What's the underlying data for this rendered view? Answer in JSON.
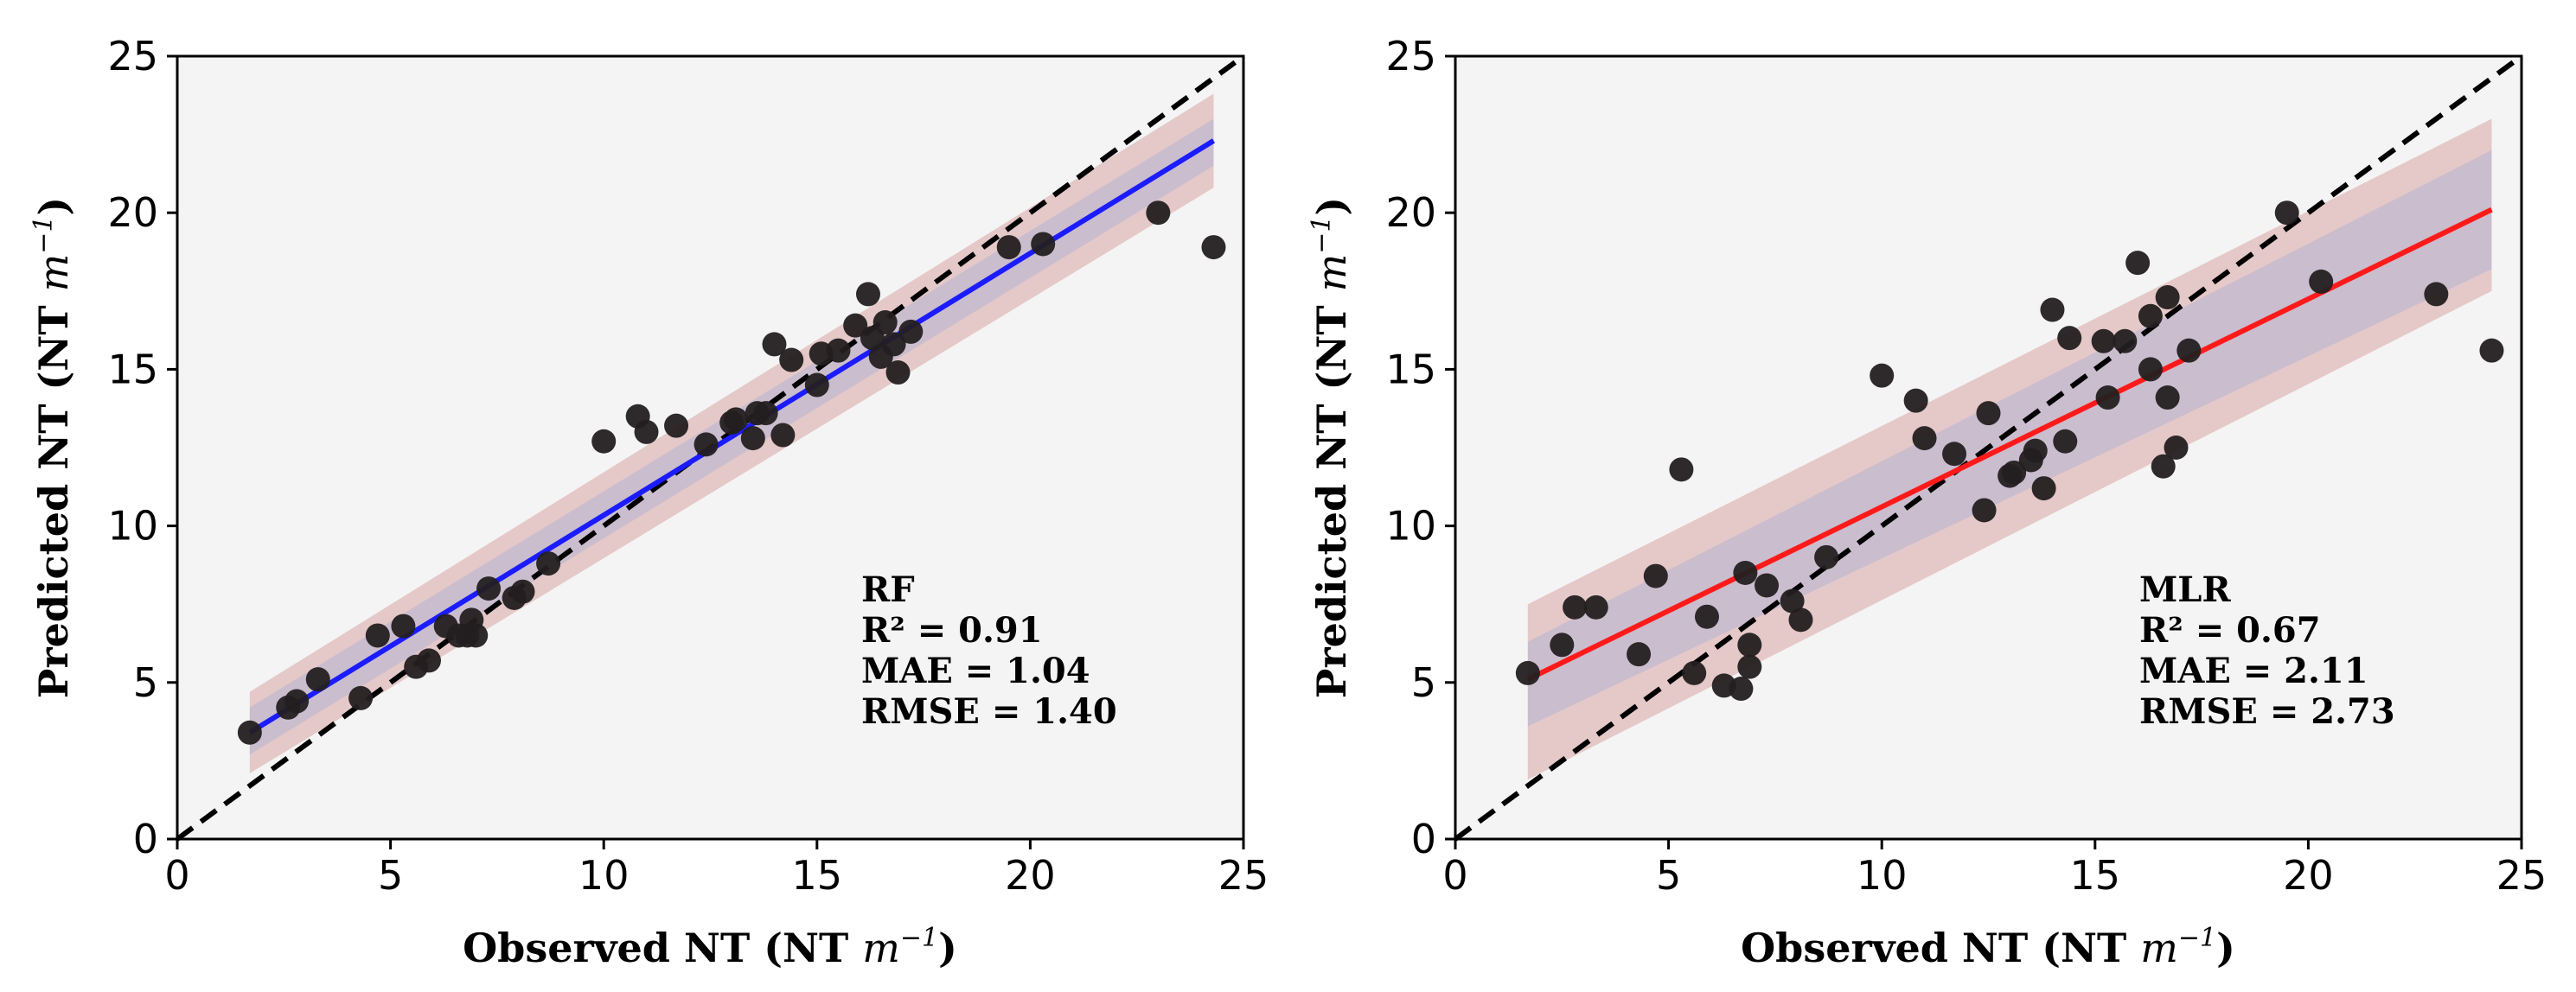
{
  "chart_data": [
    {
      "type": "scatter",
      "model": "RF",
      "xlabel": "Observed NT (NT m⁻¹)",
      "ylabel": "Predicted NT (NT m⁻¹)",
      "xlim": [
        0,
        25
      ],
      "ylim": [
        0,
        25
      ],
      "xticks": [
        0,
        5,
        10,
        15,
        20,
        25
      ],
      "yticks": [
        0,
        5,
        10,
        15,
        20,
        25
      ],
      "background": "#f4f4f4",
      "fit_color": "#1b1bff",
      "point_color": "#231f20",
      "one_to_one_line": true,
      "fit": {
        "x0": 1.7,
        "y0": 3.4,
        "x1": 24.3,
        "y1": 22.3
      },
      "bands": {
        "outer": {
          "upper_start": 4.7,
          "lower_start": 2.1,
          "upper_end": 23.8,
          "lower_end": 20.8
        },
        "inner": {
          "upper_start": 4.2,
          "lower_start": 2.7,
          "upper_end": 23.0,
          "lower_end": 21.5
        }
      },
      "annotation": {
        "label": "RF",
        "r2": "R² = 0.91",
        "mae": "MAE = 1.04",
        "rmse": "RMSE = 1.40"
      },
      "points": [
        [
          1.7,
          3.4
        ],
        [
          2.6,
          4.2
        ],
        [
          2.8,
          4.4
        ],
        [
          3.3,
          5.1
        ],
        [
          4.3,
          4.5
        ],
        [
          4.7,
          6.5
        ],
        [
          5.3,
          6.8
        ],
        [
          5.6,
          5.5
        ],
        [
          5.9,
          5.7
        ],
        [
          6.3,
          6.8
        ],
        [
          6.6,
          6.5
        ],
        [
          6.8,
          6.5
        ],
        [
          6.9,
          7.0
        ],
        [
          7.0,
          6.5
        ],
        [
          7.3,
          8.0
        ],
        [
          7.9,
          7.7
        ],
        [
          8.1,
          7.9
        ],
        [
          8.7,
          8.8
        ],
        [
          10.0,
          12.7
        ],
        [
          10.8,
          13.5
        ],
        [
          11.0,
          13.0
        ],
        [
          11.7,
          13.2
        ],
        [
          12.4,
          12.6
        ],
        [
          13.0,
          13.3
        ],
        [
          13.1,
          13.4
        ],
        [
          13.5,
          12.8
        ],
        [
          13.6,
          13.6
        ],
        [
          13.8,
          13.6
        ],
        [
          14.0,
          15.8
        ],
        [
          14.2,
          12.9
        ],
        [
          14.4,
          15.3
        ],
        [
          15.0,
          14.5
        ],
        [
          15.1,
          15.5
        ],
        [
          15.5,
          15.6
        ],
        [
          15.9,
          16.4
        ],
        [
          16.2,
          17.4
        ],
        [
          16.3,
          16.0
        ],
        [
          16.5,
          15.4
        ],
        [
          16.6,
          16.5
        ],
        [
          16.8,
          15.8
        ],
        [
          16.9,
          14.9
        ],
        [
          17.2,
          16.2
        ],
        [
          19.5,
          18.9
        ],
        [
          20.3,
          19.0
        ],
        [
          23.0,
          20.0
        ],
        [
          24.3,
          18.9
        ]
      ]
    },
    {
      "type": "scatter",
      "model": "MLR",
      "xlabel": "Observed NT (NT m⁻¹)",
      "ylabel": "Predicted NT (NT m⁻¹)",
      "xlim": [
        0,
        25
      ],
      "ylim": [
        0,
        25
      ],
      "xticks": [
        0,
        5,
        10,
        15,
        20,
        25
      ],
      "yticks": [
        0,
        5,
        10,
        15,
        20,
        25
      ],
      "background": "#f4f4f4",
      "fit_color": "#ff1a1a",
      "point_color": "#231f20",
      "one_to_one_line": true,
      "fit": {
        "x0": 1.7,
        "y0": 5.1,
        "x1": 24.3,
        "y1": 20.1
      },
      "bands": {
        "outer": {
          "upper_start": 7.5,
          "lower_start": 1.9,
          "upper_end": 23.0,
          "lower_end": 17.5
        },
        "inner": {
          "upper_start": 6.3,
          "lower_start": 3.6,
          "upper_end": 22.0,
          "lower_end": 18.2
        }
      },
      "annotation": {
        "label": "MLR",
        "r2": "R² = 0.67",
        "mae": "MAE = 2.11",
        "rmse": "RMSE = 2.73"
      },
      "points": [
        [
          1.7,
          5.3
        ],
        [
          2.5,
          6.2
        ],
        [
          2.8,
          7.4
        ],
        [
          3.3,
          7.4
        ],
        [
          4.3,
          5.9
        ],
        [
          4.7,
          8.4
        ],
        [
          5.3,
          11.8
        ],
        [
          5.6,
          5.3
        ],
        [
          5.9,
          7.1
        ],
        [
          6.3,
          4.9
        ],
        [
          6.7,
          4.8
        ],
        [
          6.8,
          8.5
        ],
        [
          6.9,
          6.2
        ],
        [
          6.9,
          5.5
        ],
        [
          7.3,
          8.1
        ],
        [
          7.9,
          7.6
        ],
        [
          8.1,
          7.0
        ],
        [
          8.7,
          9.0
        ],
        [
          10.0,
          14.8
        ],
        [
          10.8,
          14.0
        ],
        [
          11.0,
          12.8
        ],
        [
          11.7,
          12.3
        ],
        [
          12.4,
          10.5
        ],
        [
          12.5,
          13.6
        ],
        [
          13.0,
          11.6
        ],
        [
          13.1,
          11.7
        ],
        [
          13.5,
          12.1
        ],
        [
          13.6,
          12.4
        ],
        [
          13.8,
          11.2
        ],
        [
          14.0,
          16.9
        ],
        [
          14.3,
          12.7
        ],
        [
          14.4,
          16.0
        ],
        [
          15.2,
          15.9
        ],
        [
          15.3,
          14.1
        ],
        [
          15.7,
          15.9
        ],
        [
          16.0,
          18.4
        ],
        [
          16.3,
          15.0
        ],
        [
          16.3,
          16.7
        ],
        [
          16.6,
          11.9
        ],
        [
          16.7,
          14.1
        ],
        [
          16.7,
          17.3
        ],
        [
          16.9,
          12.5
        ],
        [
          17.2,
          15.6
        ],
        [
          19.5,
          20.0
        ],
        [
          20.3,
          17.8
        ],
        [
          23.0,
          17.4
        ],
        [
          24.3,
          15.6
        ]
      ]
    }
  ]
}
